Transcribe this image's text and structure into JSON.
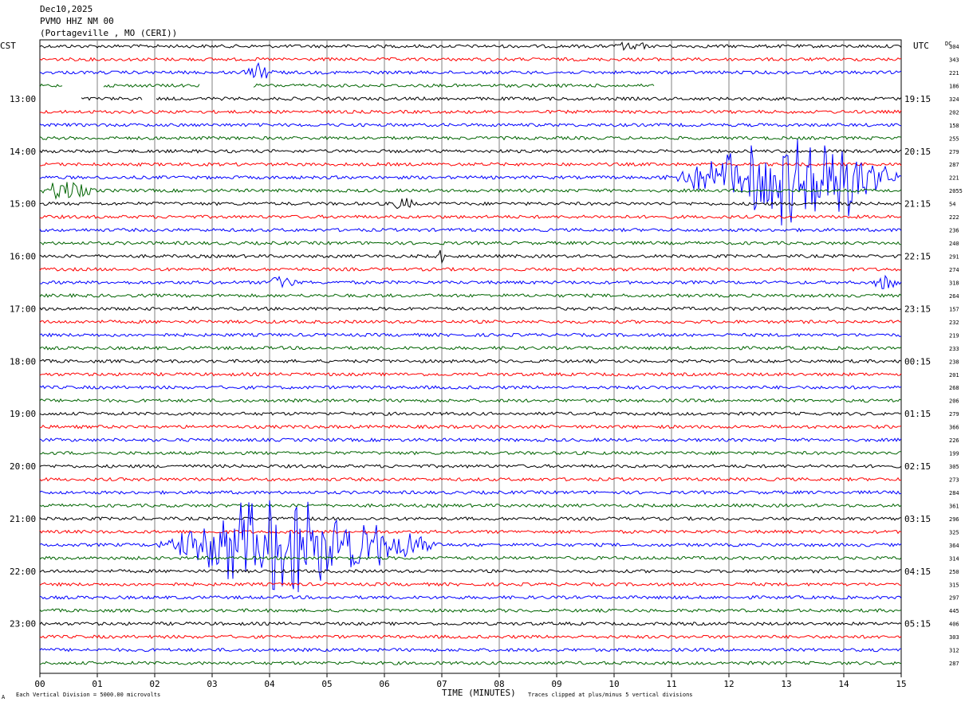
{
  "header": {
    "date": "Dec10,2025",
    "station": "PVMO HHZ NM 00",
    "location": "(Portageville , MO (CERI))"
  },
  "axis": {
    "left_zone": "CST",
    "right_zone": "UTC",
    "dc_label": "DC",
    "xlabel": "TIME (MINUTES)",
    "footer_left": "Each Vertical Division = 5000.00 microvolts",
    "footer_right": "Traces clipped at plus/minus 5 vertical divisions",
    "corner_mark": "A"
  },
  "colors": {
    "cycle": [
      "#000000",
      "#ff0000",
      "#0000ff",
      "#006400"
    ],
    "grid": "#808080"
  },
  "chart_data": {
    "type": "line",
    "title": "",
    "xlabel": "TIME (MINUTES)",
    "x_ticks": [
      "00",
      "01",
      "02",
      "03",
      "04",
      "05",
      "06",
      "07",
      "08",
      "09",
      "10",
      "11",
      "12",
      "13",
      "14",
      "15"
    ],
    "xlim": [
      0,
      15
    ],
    "traces_per_hour": 4,
    "trace_count": 48,
    "left_hour_labels": [
      {
        "trace": 4,
        "label": "13:00"
      },
      {
        "trace": 8,
        "label": "14:00"
      },
      {
        "trace": 12,
        "label": "15:00"
      },
      {
        "trace": 16,
        "label": "16:00"
      },
      {
        "trace": 20,
        "label": "17:00"
      },
      {
        "trace": 24,
        "label": "18:00"
      },
      {
        "trace": 28,
        "label": "19:00"
      },
      {
        "trace": 32,
        "label": "20:00"
      },
      {
        "trace": 36,
        "label": "21:00"
      },
      {
        "trace": 40,
        "label": "22:00"
      },
      {
        "trace": 44,
        "label": "23:00"
      }
    ],
    "right_hour_labels": [
      {
        "trace": 4,
        "label": "19:15"
      },
      {
        "trace": 8,
        "label": "20:15"
      },
      {
        "trace": 12,
        "label": "21:15"
      },
      {
        "trace": 16,
        "label": "22:15"
      },
      {
        "trace": 20,
        "label": "23:15"
      },
      {
        "trace": 24,
        "label": "00:15"
      },
      {
        "trace": 28,
        "label": "01:15"
      },
      {
        "trace": 32,
        "label": "02:15"
      },
      {
        "trace": 36,
        "label": "03:15"
      },
      {
        "trace": 40,
        "label": "04:15"
      },
      {
        "trace": 44,
        "label": "05:15"
      }
    ],
    "dc_offsets": [
      "304",
      "343",
      "221",
      "186",
      "324",
      "202",
      "158",
      "255",
      "279",
      "287",
      "221",
      "2055",
      "54",
      "222",
      "236",
      "240",
      "291",
      "274",
      "318",
      "264",
      "157",
      "232",
      "219",
      "233",
      "238",
      "201",
      "268",
      "206",
      "279",
      "366",
      "226",
      "199",
      "305",
      "273",
      "284",
      "361",
      "296",
      "325",
      "364",
      "314",
      "250",
      "315",
      "297",
      "445",
      "406",
      "303",
      "312",
      "287"
    ],
    "events": [
      {
        "trace": 10,
        "start_min": 10.8,
        "end_min": 15.0,
        "peak_min": 13.5,
        "amplitude": 5
      },
      {
        "trace": 11,
        "start_min": 0.0,
        "end_min": 1.0,
        "peak_min": 0.3,
        "amplitude": 1.2
      },
      {
        "trace": 38,
        "start_min": 2.0,
        "end_min": 7.0,
        "peak_min": 4.2,
        "amplitude": 5
      },
      {
        "trace": 2,
        "start_min": 3.5,
        "end_min": 4.2,
        "peak_min": 3.8,
        "amplitude": 0.8
      },
      {
        "trace": 18,
        "start_min": 4.0,
        "end_min": 4.5,
        "peak_min": 4.1,
        "amplitude": 0.8
      },
      {
        "trace": 18,
        "start_min": 14.5,
        "end_min": 15.0,
        "peak_min": 14.7,
        "amplitude": 0.8
      },
      {
        "trace": 16,
        "start_min": 6.9,
        "end_min": 7.1,
        "peak_min": 7.0,
        "amplitude": 0.6
      },
      {
        "trace": 12,
        "start_min": 6.1,
        "end_min": 6.6,
        "peak_min": 6.3,
        "amplitude": 0.6
      },
      {
        "trace": 0,
        "start_min": 10.0,
        "end_min": 10.6,
        "peak_min": 10.3,
        "amplitude": 0.6
      }
    ],
    "gaps": [
      {
        "trace": 3,
        "start_min": 0.4,
        "end_min": 1.1
      },
      {
        "trace": 3,
        "start_min": 2.8,
        "end_min": 3.7
      },
      {
        "trace": 3,
        "start_min": 10.7,
        "end_min": 15.0
      },
      {
        "trace": 4,
        "start_min": 0.0,
        "end_min": 0.7
      },
      {
        "trace": 4,
        "start_min": 1.8,
        "end_min": 2.0
      }
    ]
  }
}
